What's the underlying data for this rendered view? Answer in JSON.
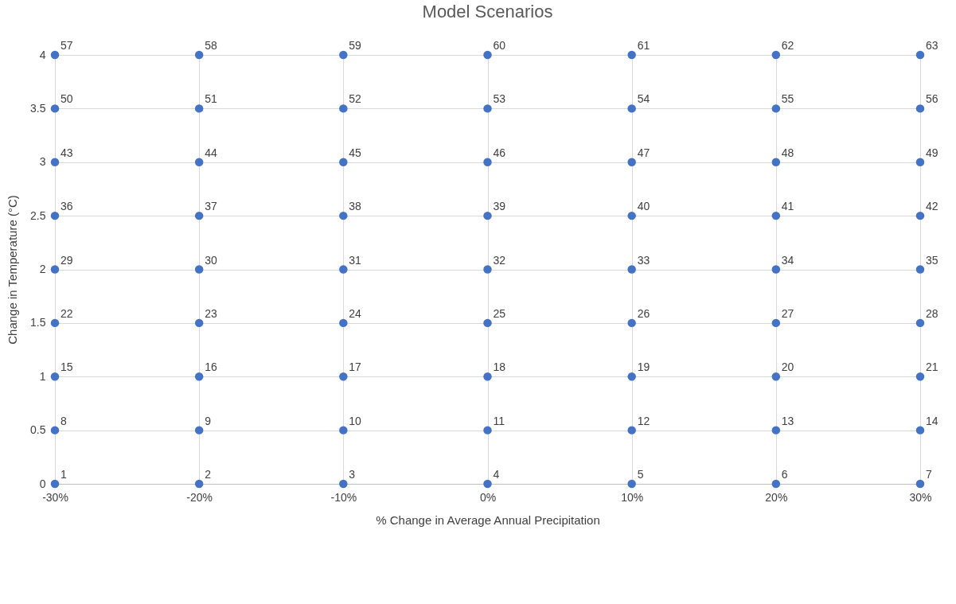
{
  "chart_data": {
    "type": "scatter",
    "title": "Model Scenarios",
    "xlabel": "% Change in Average Annual Precipitation",
    "ylabel": "Change in Temperature (°C)",
    "xlim": [
      -30,
      30
    ],
    "xticks": [
      {
        "value": -30,
        "label": "-30%"
      },
      {
        "value": -20,
        "label": "-20%"
      },
      {
        "value": -10,
        "label": "-10%"
      },
      {
        "value": 0,
        "label": "0%"
      },
      {
        "value": 10,
        "label": "10%"
      },
      {
        "value": 20,
        "label": "20%"
      },
      {
        "value": 30,
        "label": "30%"
      }
    ],
    "ylim": [
      0,
      4
    ],
    "yticks": [
      0,
      0.5,
      1,
      1.5,
      2,
      2.5,
      3,
      3.5,
      4
    ],
    "grid": true,
    "marker": "circle",
    "series": [
      {
        "color": "#4472c4",
        "x": [
          -30,
          -20,
          -10,
          0,
          10,
          20,
          30,
          -30,
          -20,
          -10,
          0,
          10,
          20,
          30,
          -30,
          -20,
          -10,
          0,
          10,
          20,
          30,
          -30,
          -20,
          -10,
          0,
          10,
          20,
          30,
          -30,
          -20,
          -10,
          0,
          10,
          20,
          30,
          -30,
          -20,
          -10,
          0,
          10,
          20,
          30,
          -30,
          -20,
          -10,
          0,
          10,
          20,
          30,
          -30,
          -20,
          -10,
          0,
          10,
          20,
          30,
          -30,
          -20,
          -10,
          0,
          10,
          20,
          30
        ],
        "values": [
          0,
          0,
          0,
          0,
          0,
          0,
          0,
          0.5,
          0.5,
          0.5,
          0.5,
          0.5,
          0.5,
          0.5,
          1,
          1,
          1,
          1,
          1,
          1,
          1,
          1.5,
          1.5,
          1.5,
          1.5,
          1.5,
          1.5,
          1.5,
          2,
          2,
          2,
          2,
          2,
          2,
          2,
          2.5,
          2.5,
          2.5,
          2.5,
          2.5,
          2.5,
          2.5,
          3,
          3,
          3,
          3,
          3,
          3,
          3,
          3.5,
          3.5,
          3.5,
          3.5,
          3.5,
          3.5,
          3.5,
          4,
          4,
          4,
          4,
          4,
          4,
          4
        ]
      }
    ],
    "annotations": [
      {
        "text": "1",
        "x": -30,
        "y": 0
      },
      {
        "text": "2",
        "x": -20,
        "y": 0
      },
      {
        "text": "3",
        "x": -10,
        "y": 0
      },
      {
        "text": "4",
        "x": 0,
        "y": 0
      },
      {
        "text": "5",
        "x": 10,
        "y": 0
      },
      {
        "text": "6",
        "x": 20,
        "y": 0
      },
      {
        "text": "7",
        "x": 30,
        "y": 0
      },
      {
        "text": "8",
        "x": -30,
        "y": 0.5
      },
      {
        "text": "9",
        "x": -20,
        "y": 0.5
      },
      {
        "text": "10",
        "x": -10,
        "y": 0.5
      },
      {
        "text": "11",
        "x": 0,
        "y": 0.5
      },
      {
        "text": "12",
        "x": 10,
        "y": 0.5
      },
      {
        "text": "13",
        "x": 20,
        "y": 0.5
      },
      {
        "text": "14",
        "x": 30,
        "y": 0.5
      },
      {
        "text": "15",
        "x": -30,
        "y": 1
      },
      {
        "text": "16",
        "x": -20,
        "y": 1
      },
      {
        "text": "17",
        "x": -10,
        "y": 1
      },
      {
        "text": "18",
        "x": 0,
        "y": 1
      },
      {
        "text": "19",
        "x": 10,
        "y": 1
      },
      {
        "text": "20",
        "x": 20,
        "y": 1
      },
      {
        "text": "21",
        "x": 30,
        "y": 1
      },
      {
        "text": "22",
        "x": -30,
        "y": 1.5
      },
      {
        "text": "23",
        "x": -20,
        "y": 1.5
      },
      {
        "text": "24",
        "x": -10,
        "y": 1.5
      },
      {
        "text": "25",
        "x": 0,
        "y": 1.5
      },
      {
        "text": "26",
        "x": 10,
        "y": 1.5
      },
      {
        "text": "27",
        "x": 20,
        "y": 1.5
      },
      {
        "text": "28",
        "x": 30,
        "y": 1.5
      },
      {
        "text": "29",
        "x": -30,
        "y": 2
      },
      {
        "text": "30",
        "x": -20,
        "y": 2
      },
      {
        "text": "31",
        "x": -10,
        "y": 2
      },
      {
        "text": "32",
        "x": 0,
        "y": 2
      },
      {
        "text": "33",
        "x": 10,
        "y": 2
      },
      {
        "text": "34",
        "x": 20,
        "y": 2
      },
      {
        "text": "35",
        "x": 30,
        "y": 2
      },
      {
        "text": "36",
        "x": -30,
        "y": 2.5
      },
      {
        "text": "37",
        "x": -20,
        "y": 2.5
      },
      {
        "text": "38",
        "x": -10,
        "y": 2.5
      },
      {
        "text": "39",
        "x": 0,
        "y": 2.5
      },
      {
        "text": "40",
        "x": 10,
        "y": 2.5
      },
      {
        "text": "41",
        "x": 20,
        "y": 2.5
      },
      {
        "text": "42",
        "x": 30,
        "y": 2.5
      },
      {
        "text": "43",
        "x": -30,
        "y": 3
      },
      {
        "text": "44",
        "x": -20,
        "y": 3
      },
      {
        "text": "45",
        "x": -10,
        "y": 3
      },
      {
        "text": "46",
        "x": 0,
        "y": 3
      },
      {
        "text": "47",
        "x": 10,
        "y": 3
      },
      {
        "text": "48",
        "x": 20,
        "y": 3
      },
      {
        "text": "49",
        "x": 30,
        "y": 3
      },
      {
        "text": "50",
        "x": -30,
        "y": 3.5
      },
      {
        "text": "51",
        "x": -20,
        "y": 3.5
      },
      {
        "text": "52",
        "x": -10,
        "y": 3.5
      },
      {
        "text": "53",
        "x": 0,
        "y": 3.5
      },
      {
        "text": "54",
        "x": 10,
        "y": 3.5
      },
      {
        "text": "55",
        "x": 20,
        "y": 3.5
      },
      {
        "text": "56",
        "x": 30,
        "y": 3.5
      },
      {
        "text": "57",
        "x": -30,
        "y": 4
      },
      {
        "text": "58",
        "x": -20,
        "y": 4
      },
      {
        "text": "59",
        "x": -10,
        "y": 4
      },
      {
        "text": "60",
        "x": 0,
        "y": 4
      },
      {
        "text": "61",
        "x": 10,
        "y": 4
      },
      {
        "text": "62",
        "x": 20,
        "y": 4
      },
      {
        "text": "63",
        "x": 30,
        "y": 4
      }
    ]
  }
}
